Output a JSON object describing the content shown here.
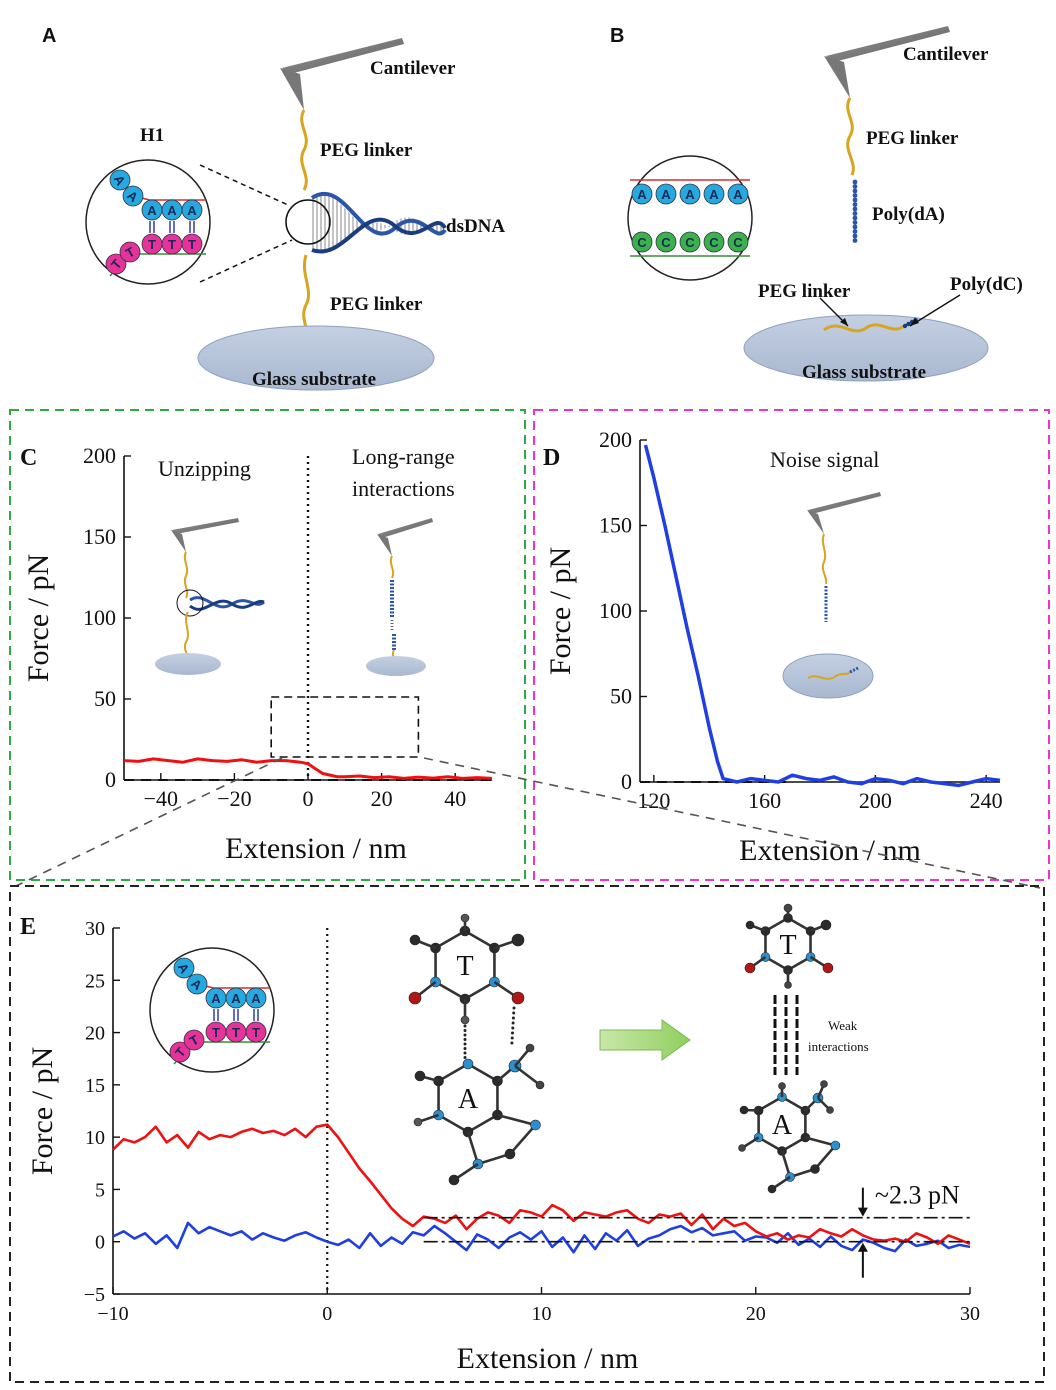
{
  "panels": {
    "A": {
      "letter": "A",
      "h1": "H1",
      "cantilever": "Cantilever",
      "peg_top": "PEG linker",
      "dsdna": "dsDNA",
      "peg_bottom": "PEG linker",
      "glass": "Glass substrate",
      "bases_top": [
        "A",
        "A",
        "A",
        "A",
        "A"
      ],
      "bases_bottom": [
        "T",
        "T",
        "T",
        "T",
        "T"
      ]
    },
    "B": {
      "letter": "B",
      "cantilever": "Cantilever",
      "peg_top": "PEG linker",
      "polyA": "Poly(dA)",
      "peg_bottom": "PEG linker",
      "polyC": "Poly(dC)",
      "glass": "Glass substrate",
      "bases_top": [
        "A",
        "A",
        "A",
        "A",
        "A"
      ],
      "bases_bottom": [
        "C",
        "C",
        "C",
        "C",
        "C"
      ]
    },
    "C": {
      "letter": "C",
      "unzipping": "Unzipping",
      "long_range_1": "Long-range",
      "long_range_2": "interactions",
      "ylabel": "Force / pN",
      "xlabel": "Extension   / nm",
      "frame_color": "#2faa3e",
      "trace_color": "#ee1111"
    },
    "D": {
      "letter": "D",
      "noise": "Noise signal",
      "ylabel": "Force / pN",
      "xlabel": "Extension   / nm",
      "frame_color": "#ee33cc",
      "trace_color": "#1f3fe0"
    },
    "E": {
      "letter": "E",
      "ylabel": "Force / pN",
      "xlabel": "Extension   / nm",
      "annotation": "~2.3 pN",
      "weak_1": "Weak",
      "weak_2": "interactions",
      "mol_T": "T",
      "mol_A": "A",
      "frame_color": "#222222",
      "red_color": "#ee1111",
      "blue_color": "#1f3fe0"
    }
  },
  "chart_data": [
    {
      "panel": "C",
      "type": "line",
      "xlim": [
        -50,
        50
      ],
      "ylim": [
        0,
        200
      ],
      "xticks": [
        -40,
        -20,
        0,
        20,
        40
      ],
      "yticks": [
        0,
        50,
        100,
        150,
        200
      ],
      "xlabel": "Extension   / nm",
      "ylabel": "Force / pN",
      "series": [
        {
          "x": [
            -50,
            -46,
            -42,
            -38,
            -34,
            -30,
            -26,
            -22,
            -18,
            -14,
            -10,
            -6,
            -2,
            0,
            2,
            4,
            6,
            8,
            10,
            14,
            18,
            22,
            26,
            30,
            34,
            38,
            42,
            46,
            50
          ],
          "y": [
            12,
            11.5,
            13,
            12,
            11,
            13,
            12,
            11.5,
            12.5,
            11,
            12,
            12,
            11,
            10,
            7,
            4,
            3,
            2,
            2,
            2.5,
            1.5,
            2,
            1,
            1.8,
            1.2,
            2,
            1,
            1.5,
            1
          ]
        }
      ]
    },
    {
      "panel": "D",
      "type": "line",
      "xlim": [
        115,
        245
      ],
      "ylim": [
        0,
        200
      ],
      "xticks": [
        120,
        160,
        200,
        240
      ],
      "yticks": [
        0,
        50,
        100,
        150,
        200
      ],
      "xlabel": "Extension   / nm",
      "ylabel": "Force / pN",
      "series": [
        {
          "x": [
            117,
            120,
            124,
            128,
            132,
            136,
            140,
            143,
            145,
            150,
            155,
            160,
            165,
            170,
            175,
            180,
            185,
            190,
            195,
            200,
            205,
            210,
            215,
            220,
            225,
            230,
            235,
            240,
            245
          ],
          "y": [
            197,
            178,
            150,
            120,
            90,
            62,
            32,
            12,
            2,
            0,
            2,
            1,
            0,
            4,
            2,
            1,
            3,
            0,
            -1,
            2,
            1,
            -1,
            2,
            0,
            -1,
            -2,
            0,
            2,
            1
          ]
        }
      ]
    },
    {
      "panel": "E",
      "type": "line",
      "xlim": [
        -10,
        30
      ],
      "ylim": [
        -5,
        30
      ],
      "xticks": [
        -10,
        0,
        10,
        20,
        30
      ],
      "yticks": [
        -5,
        0,
        5,
        10,
        15,
        20,
        25,
        30
      ],
      "xlabel": "Extension   / nm",
      "ylabel": "Force / pN",
      "series": [
        {
          "color": "red",
          "x": [
            -10,
            -9.5,
            -9,
            -8.5,
            -8,
            -7.5,
            -7,
            -6.5,
            -6,
            -5.5,
            -5,
            -4.5,
            -4,
            -3.5,
            -3,
            -2.5,
            -2,
            -1.5,
            -1,
            -0.5,
            0,
            0.5,
            1,
            1.5,
            2,
            2.5,
            3,
            3.5,
            4,
            4.5,
            5,
            5.5,
            6,
            6.5,
            7,
            7.5,
            8,
            8.5,
            9,
            9.5,
            10,
            10.5,
            11,
            11.5,
            12,
            12.5,
            13,
            13.5,
            14,
            14.5,
            15,
            15.5,
            16,
            16.5,
            17,
            17.5,
            18,
            18.5,
            19,
            19.5,
            20,
            20.5,
            21,
            21.5,
            22,
            22.5,
            23,
            23.5,
            24,
            24.5,
            25,
            25.5,
            26,
            26.5,
            27,
            27.5,
            28,
            28.5,
            29,
            29.5,
            30
          ],
          "y": [
            8.8,
            9.8,
            9.5,
            10,
            11,
            9.5,
            10.2,
            9,
            10.5,
            9.8,
            10.2,
            10,
            10.5,
            10.8,
            10.4,
            10.6,
            10.2,
            10.8,
            10,
            11,
            11.2,
            10,
            8.5,
            7,
            5.8,
            4.5,
            3.2,
            2.2,
            1.5,
            2.4,
            2.2,
            1.8,
            2.5,
            1.2,
            2.2,
            2.8,
            2.5,
            1.8,
            3,
            2.8,
            2.4,
            3.5,
            3,
            2,
            2.8,
            2.6,
            2.4,
            2.8,
            3,
            2.2,
            1.8,
            2.6,
            2.4,
            2.7,
            1.6,
            2.6,
            1.2,
            2.2,
            1.5,
            1.8,
            1,
            0.5,
            0.8,
            0.2,
            0.6,
            0.4,
            1.2,
            0.8,
            0.5,
            1.2,
            0.6,
            0.2,
            0.1,
            0.3,
            0,
            0.8,
            0.4,
            -0.2,
            0.6,
            0.2,
            -0.2
          ]
        },
        {
          "color": "blue",
          "x": [
            -10,
            -9.5,
            -9,
            -8.5,
            -8,
            -7.5,
            -7,
            -6.5,
            -6,
            -5.5,
            -5,
            -4.5,
            -4,
            -3.5,
            -3,
            -2.5,
            -2,
            -1.5,
            -1,
            -0.5,
            0,
            0.5,
            1,
            1.5,
            2,
            2.5,
            3,
            3.5,
            4,
            4.5,
            5,
            5.5,
            6,
            6.5,
            7,
            7.5,
            8,
            8.5,
            9,
            9.5,
            10,
            10.5,
            11,
            11.5,
            12,
            12.5,
            13,
            13.5,
            14,
            14.5,
            15,
            15.5,
            16,
            16.5,
            17,
            17.5,
            18,
            18.5,
            19,
            19.5,
            20,
            20.5,
            21,
            21.5,
            22,
            22.5,
            23,
            23.5,
            24,
            24.5,
            25,
            25.5,
            26,
            26.5,
            27,
            27.5,
            28,
            28.5,
            29,
            29.5,
            30
          ],
          "y": [
            0.5,
            1,
            0.3,
            0.8,
            -0.2,
            0.6,
            -0.6,
            1.8,
            0.8,
            1.4,
            1,
            0.6,
            1,
            0.2,
            0.8,
            0.4,
            0.1,
            0.6,
            0.9,
            0.4,
            0,
            -0.3,
            0.2,
            -0.6,
            0.8,
            -0.4,
            0.4,
            -0.2,
            0.9,
            0.6,
            1.5,
            0.8,
            0,
            -0.8,
            0.7,
            0.2,
            -0.6,
            0.4,
            0.9,
            0.2,
            1,
            -0.5,
            0.4,
            -1,
            0.6,
            -0.7,
            0.8,
            0.1,
            1.1,
            -0.4,
            0.3,
            0.6,
            1.2,
            1.5,
            0.9,
            1.3,
            0.6,
            0.8,
            1,
            0.1,
            0.5,
            0.4,
            -0.1,
            0.8,
            -0.3,
            0.3,
            -0.5,
            0.5,
            -0.4,
            -0.8,
            0.2,
            -0.1,
            -0.6,
            -0.9,
            0.2,
            -0.4,
            -0.2,
            0.1,
            -0.6,
            -0.3,
            -0.5
          ]
        }
      ],
      "reference_lines": [
        2.3,
        0
      ]
    }
  ]
}
